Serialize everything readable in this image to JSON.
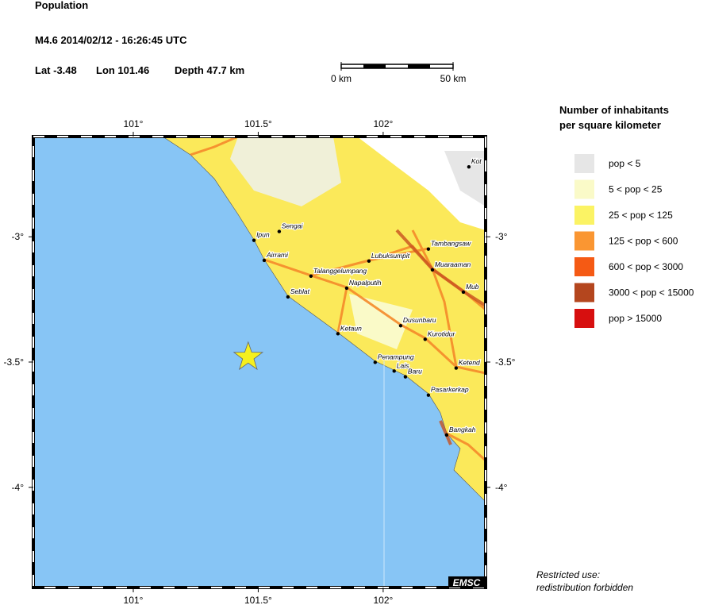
{
  "header": {
    "title": "Population",
    "event": "M4.6  2014/02/12 - 16:26:45 UTC",
    "lat": "Lat -3.48",
    "lon": "Lon 101.46",
    "depth": "Depth  47.7 km"
  },
  "scale_bar": {
    "start": "0 km",
    "end": "50 km"
  },
  "map": {
    "lonlim": [
      100.6,
      102.41
    ],
    "latlim": [
      -4.4,
      -2.6
    ],
    "lonticks": [
      {
        "value": 101,
        "label": "101°"
      },
      {
        "value": 101.5,
        "label": "101.5°"
      },
      {
        "value": 102,
        "label": "102°"
      }
    ],
    "latticks": [
      {
        "value": -3,
        "label": "-3°"
      },
      {
        "value": -3.5,
        "label": "-3.5°"
      },
      {
        "value": -4,
        "label": "-4°"
      }
    ],
    "epicenter": {
      "lon": 101.46,
      "lat": -3.48
    },
    "cities": [
      {
        "name": "Kot",
        "lon": 102.343,
        "lat": -2.721
      },
      {
        "name": "Sengai",
        "lon": 101.584,
        "lat": -2.979
      },
      {
        "name": "Ipun",
        "lon": 101.483,
        "lat": -3.014
      },
      {
        "name": "Airrami",
        "lon": 101.524,
        "lat": -3.094
      },
      {
        "name": "Talanggelumpang",
        "lon": 101.711,
        "lat": -3.157
      },
      {
        "name": "Lubuksumpit",
        "lon": 101.943,
        "lat": -3.097
      },
      {
        "name": "Tambangsaw",
        "lon": 102.181,
        "lat": -3.049
      },
      {
        "name": "Muaraaman",
        "lon": 102.197,
        "lat": -3.132
      },
      {
        "name": "Mub",
        "lon": 102.321,
        "lat": -3.221
      },
      {
        "name": "Napalputih",
        "lon": 101.854,
        "lat": -3.205
      },
      {
        "name": "Seblat",
        "lon": 101.619,
        "lat": -3.24
      },
      {
        "name": "Dusunbaru",
        "lon": 102.07,
        "lat": -3.355
      },
      {
        "name": "Ketaun",
        "lon": 101.819,
        "lat": -3.387
      },
      {
        "name": "Kurotidur",
        "lon": 102.168,
        "lat": -3.409
      },
      {
        "name": "Penampung",
        "lon": 101.968,
        "lat": -3.501
      },
      {
        "name": "Ketend",
        "lon": 102.292,
        "lat": -3.524
      },
      {
        "name": "Lais",
        "lon": 102.044,
        "lat": -3.536
      },
      {
        "name": "Baru",
        "lon": 102.089,
        "lat": -3.559
      },
      {
        "name": "Pasarkerkap",
        "lon": 102.181,
        "lat": -3.632
      },
      {
        "name": "Bangkah",
        "lon": 102.254,
        "lat": -3.791
      }
    ],
    "logo": "EMSC"
  },
  "legend": {
    "title": [
      "Number of inhabitants",
      "per square kilometer"
    ],
    "items": [
      {
        "label": "pop < 5",
        "color": "#e6e6e6"
      },
      {
        "label": "5 < pop < 25",
        "color": "#fafac8"
      },
      {
        "label": "25 < pop < 125",
        "color": "#fbf364"
      },
      {
        "label": "125 < pop < 600",
        "color": "#fa9632"
      },
      {
        "label": "600 < pop < 3000",
        "color": "#f55a14"
      },
      {
        "label": "3000 < pop < 15000",
        "color": "#b4461e"
      },
      {
        "label": "pop > 15000",
        "color": "#d70f0f"
      }
    ]
  },
  "notice": [
    "Restricted use:",
    "redistribution forbidden"
  ]
}
